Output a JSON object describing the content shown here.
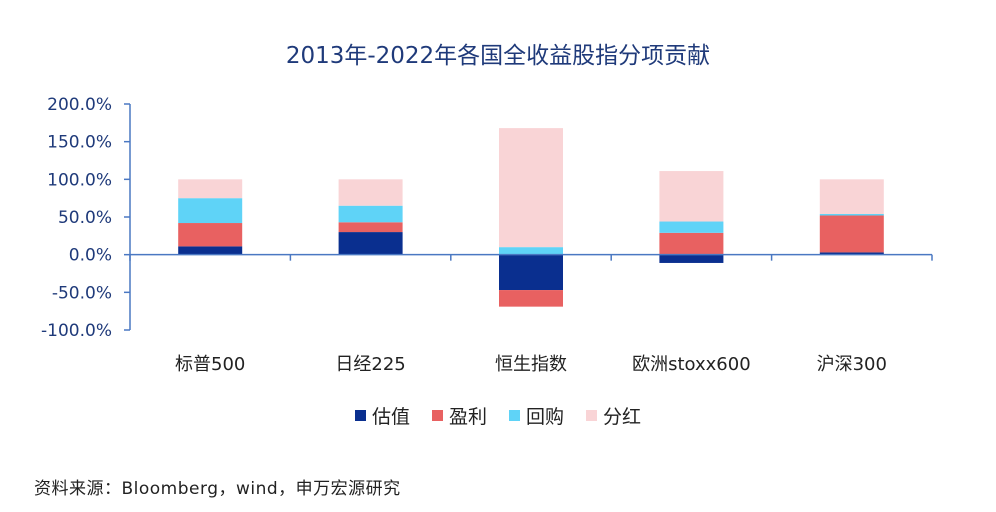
{
  "chart_data": {
    "type": "bar",
    "stacked": true,
    "title": "2013年-2022年各国全收益股指分项贡献",
    "categories": [
      "标普500",
      "日经225",
      "恒生指数",
      "欧洲stoxx600",
      "沪深300"
    ],
    "series": [
      {
        "name": "估值",
        "color": "#0a2f8f",
        "values": [
          11,
          30,
          -47,
          -11,
          3
        ]
      },
      {
        "name": "盈利",
        "color": "#e86161",
        "values": [
          31,
          13,
          -22,
          29,
          49
        ]
      },
      {
        "name": "回购",
        "color": "#5fd3f7",
        "values": [
          33,
          22,
          10,
          15,
          2
        ]
      },
      {
        "name": "分红",
        "color": "#f9d4d6",
        "values": [
          25,
          35,
          158,
          67,
          46
        ]
      }
    ],
    "y_ticks": [
      "200.0%",
      "150.0%",
      "100.0%",
      "50.0%",
      "0.0%",
      "-50.0%",
      "-100.0%"
    ],
    "ylim": [
      -100,
      200
    ],
    "xlabel": "",
    "ylabel": "",
    "grid": false,
    "legend_position": "bottom"
  },
  "source_note": "资料来源：Bloomberg，wind，申万宏源研究"
}
